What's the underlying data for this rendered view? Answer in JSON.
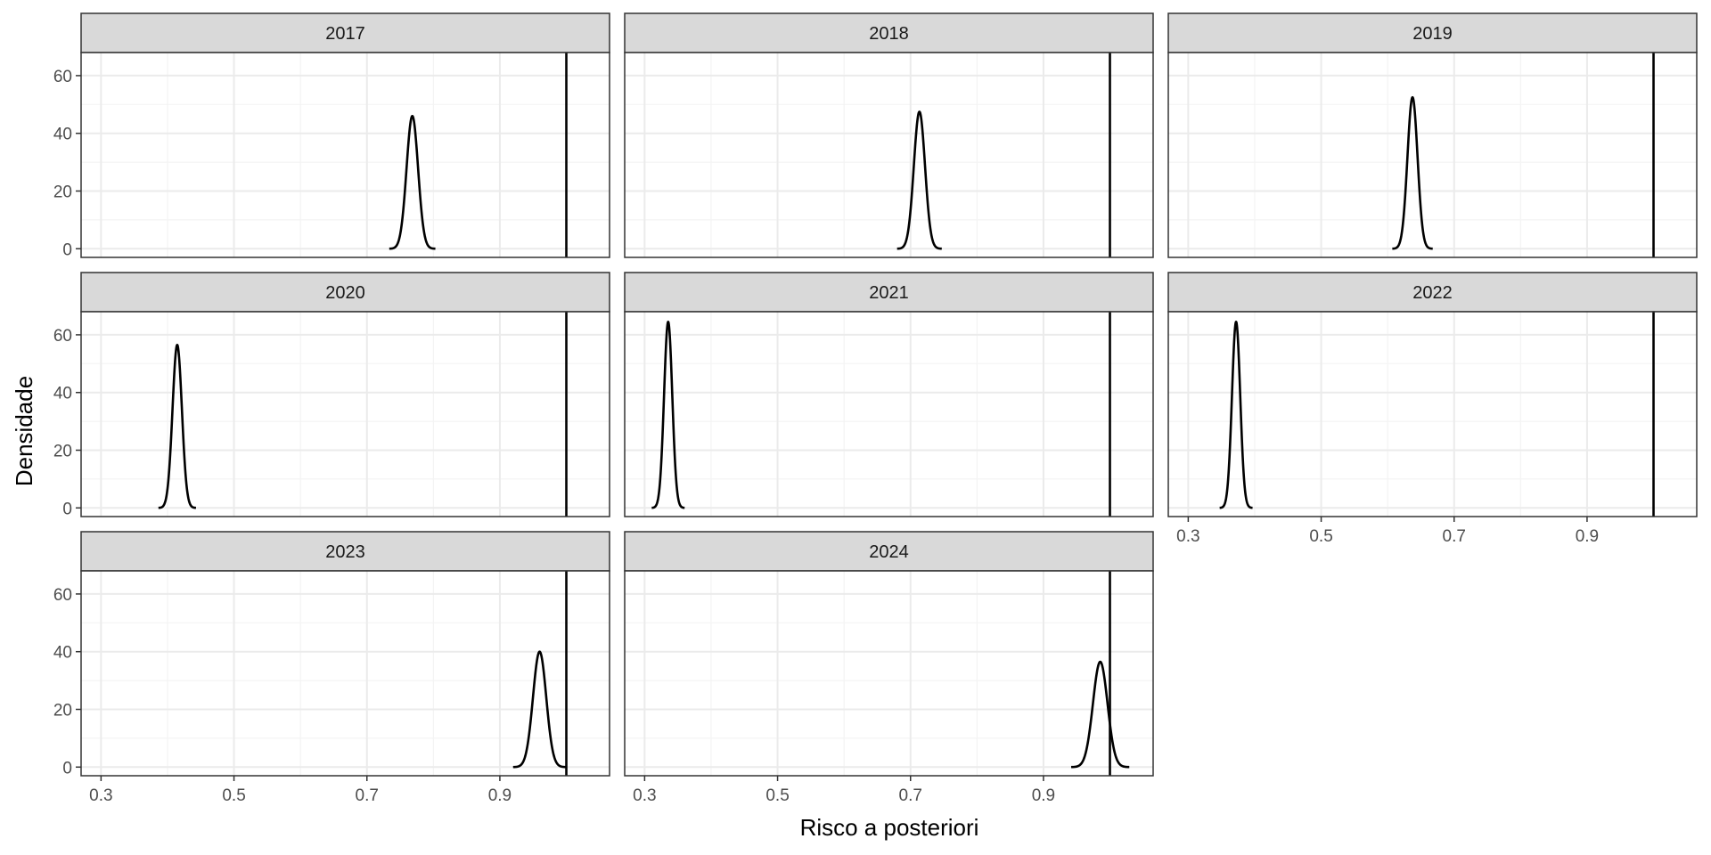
{
  "chart_data": {
    "type": "line",
    "facet_layout": "3 columns x 3 rows",
    "xlabel": "Risco a posteriori",
    "ylabel": "Densidade",
    "xlim": [
      0.27,
      1.065
    ],
    "ylim": [
      -3,
      68
    ],
    "x_ticks": [
      0.3,
      0.5,
      0.7,
      0.9
    ],
    "x_tick_labels": [
      "0.3",
      "0.5",
      "0.7",
      "0.9"
    ],
    "y_ticks": [
      0,
      20,
      40,
      60
    ],
    "y_tick_labels": [
      "0",
      "20",
      "40",
      "60"
    ],
    "grid": true,
    "theme": "bw",
    "reference_line_x": 1.0,
    "colors": {
      "strip_fill": "#d9d9d9",
      "panel_border": "#333333",
      "grid_major": "#ebebeb",
      "grid_minor": "#f4f4f4",
      "line": "#000000"
    },
    "panels": [
      {
        "label": "2017",
        "mean": 0.7683,
        "peak_density": 46.0
      },
      {
        "label": "2018",
        "mean": 0.7134,
        "peak_density": 47.5
      },
      {
        "label": "2019",
        "mean": 0.6374,
        "peak_density": 52.5
      },
      {
        "label": "2020",
        "mean": 0.4146,
        "peak_density": 56.5
      },
      {
        "label": "2021",
        "mean": 0.3354,
        "peak_density": 64.5
      },
      {
        "label": "2022",
        "mean": 0.372,
        "peak_density": 64.5
      },
      {
        "label": "2023",
        "mean": 0.9598,
        "peak_density": 40.0
      },
      {
        "label": "2024",
        "mean": 0.9854,
        "peak_density": 36.5
      }
    ]
  }
}
